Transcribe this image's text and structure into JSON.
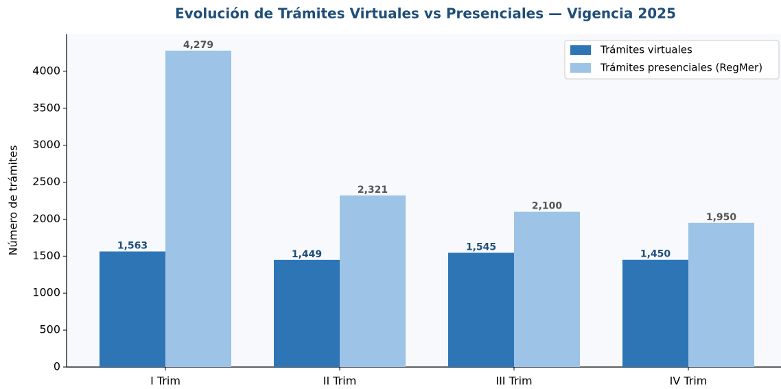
{
  "chart_data": {
    "type": "bar",
    "title": "Evolución de Trámites Virtuales vs Presenciales — Vigencia 2025",
    "y_label": "Número de trámites",
    "categories": [
      "I Trim",
      "II Trim",
      "III Trim",
      "IV Trim"
    ],
    "series": [
      {
        "name": "Trámites virtuales",
        "color": "#2e75b6",
        "label_color": "#1f4e79",
        "values": [
          1563,
          1449,
          1545,
          1450
        ],
        "value_labels": [
          "1,563",
          "1,449",
          "1,545",
          "1,450"
        ]
      },
      {
        "name": "Trámites presenciales (RegMer)",
        "color": "#9dc3e6",
        "label_color": "#555555",
        "values": [
          4279,
          2321,
          2100,
          1950
        ],
        "value_labels": [
          "4,279",
          "2,321",
          "2,100",
          "1,950"
        ]
      }
    ],
    "ylim": [
      0,
      4500
    ],
    "yticks": [
      0,
      500,
      1000,
      1500,
      2000,
      2500,
      3000,
      3500,
      4000
    ],
    "grid": false,
    "legend": "upper right"
  }
}
